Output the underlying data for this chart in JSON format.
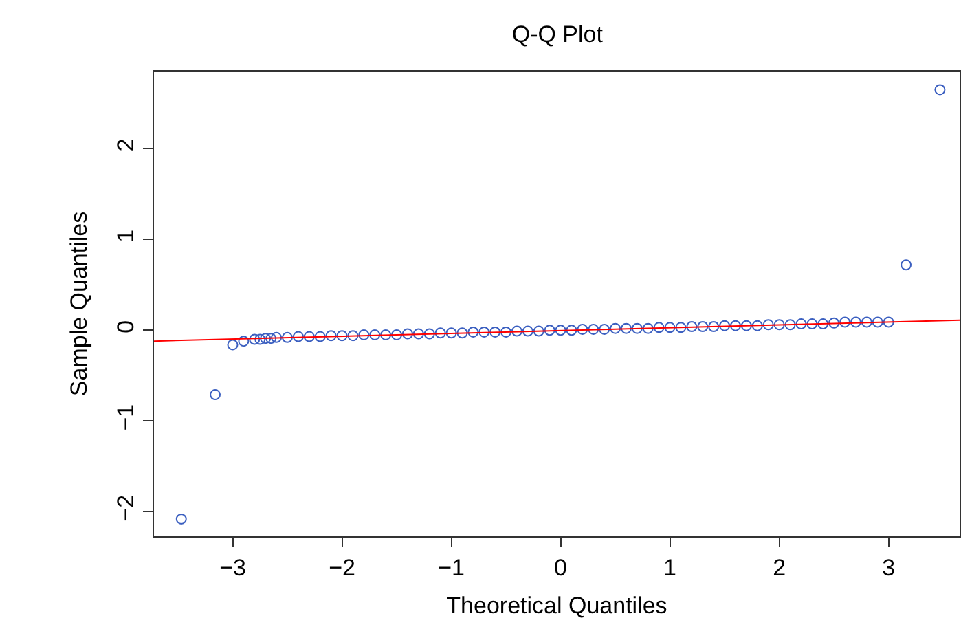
{
  "chart_data": {
    "type": "scatter",
    "title": "Q-Q Plot",
    "xlabel": "Theoretical Quantiles",
    "ylabel": "Sample Quantiles",
    "xlim": [
      -3.72,
      3.65
    ],
    "ylim": [
      -2.27,
      2.85
    ],
    "xticks": [
      -3,
      -2,
      -1,
      0,
      1,
      2,
      3
    ],
    "yticks": [
      -2,
      -1,
      0,
      1,
      2
    ],
    "legend": false,
    "series": [
      {
        "marker": "circle",
        "color": "#3b5fc0",
        "x": [
          -3.47,
          -3.16,
          -3.0,
          -2.9,
          -2.8,
          -2.75,
          -2.7,
          -2.65,
          -2.6,
          -2.5,
          -2.4,
          -2.3,
          -2.2,
          -2.1,
          -2.0,
          -1.9,
          -1.8,
          -1.7,
          -1.6,
          -1.5,
          -1.4,
          -1.3,
          -1.2,
          -1.1,
          -1.0,
          -0.9,
          -0.8,
          -0.7,
          -0.6,
          -0.5,
          -0.4,
          -0.3,
          -0.2,
          -0.1,
          0.0,
          0.1,
          0.2,
          0.3,
          0.4,
          0.5,
          0.6,
          0.7,
          0.8,
          0.9,
          1.0,
          1.1,
          1.2,
          1.3,
          1.4,
          1.5,
          1.6,
          1.7,
          1.8,
          1.9,
          2.0,
          2.1,
          2.2,
          2.3,
          2.4,
          2.5,
          2.6,
          2.7,
          2.8,
          2.9,
          3.0,
          3.16,
          3.47
        ],
        "values": [
          -2.08,
          -0.71,
          -0.16,
          -0.12,
          -0.1,
          -0.1,
          -0.09,
          -0.09,
          -0.08,
          -0.08,
          -0.07,
          -0.07,
          -0.07,
          -0.06,
          -0.06,
          -0.06,
          -0.05,
          -0.05,
          -0.05,
          -0.05,
          -0.04,
          -0.04,
          -0.04,
          -0.03,
          -0.03,
          -0.03,
          -0.02,
          -0.02,
          -0.02,
          -0.02,
          -0.01,
          -0.01,
          -0.01,
          0.0,
          0.0,
          0.0,
          0.01,
          0.01,
          0.01,
          0.02,
          0.02,
          0.02,
          0.02,
          0.03,
          0.03,
          0.03,
          0.04,
          0.04,
          0.04,
          0.05,
          0.05,
          0.05,
          0.05,
          0.06,
          0.06,
          0.06,
          0.07,
          0.07,
          0.07,
          0.08,
          0.09,
          0.09,
          0.09,
          0.09,
          0.09,
          0.72,
          2.65
        ]
      },
      {
        "type": "line",
        "marker": "none",
        "color": "#ff0000",
        "x": [
          -3.72,
          3.65
        ],
        "values": [
          -0.12,
          0.11
        ]
      }
    ]
  }
}
